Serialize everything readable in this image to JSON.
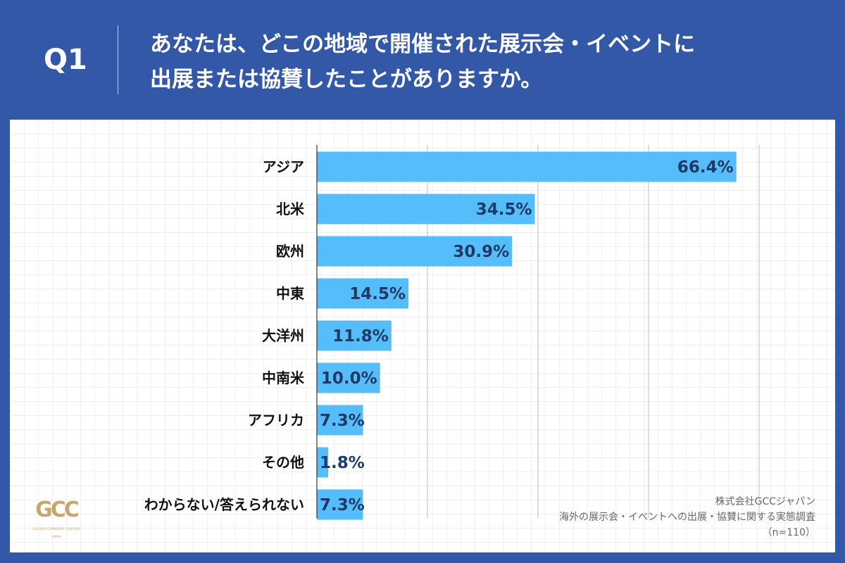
{
  "header": {
    "question": "Q1",
    "title_line1": "あなたは、どこの地域で開催された展示会・イベントに",
    "title_line2": "出展または協賛したことがありますか。"
  },
  "colors": {
    "background": "#3358a8",
    "bar": "#55bdf9",
    "value_text": "#1d3a68",
    "logo": "#c9a66b"
  },
  "chart_data": {
    "type": "bar",
    "orientation": "horizontal",
    "categories": [
      "アジア",
      "北米",
      "欧州",
      "中東",
      "大洋州",
      "中南米",
      "アフリカ",
      "その他",
      "わからない/答えられない"
    ],
    "values": [
      66.4,
      34.5,
      30.9,
      14.5,
      11.8,
      10.0,
      7.3,
      1.8,
      7.3
    ],
    "value_labels": [
      "66.4%",
      "34.5%",
      "30.9%",
      "14.5%",
      "11.8%",
      "10.0%",
      "7.3%",
      "1.8%",
      "7.3%"
    ],
    "xlim": [
      0,
      70
    ],
    "grid": true,
    "gridlines": [
      17.5,
      35,
      52.5,
      70
    ]
  },
  "footer": {
    "company": "株式会社GCCジャパン",
    "survey": "海外の展示会・イベントへの出展・協賛に関する実態調査",
    "sample": "（n=110）"
  },
  "logo": {
    "text": "GCC",
    "subtext": "GOLDEN CAMBODIA CENTURY JAPAN"
  }
}
